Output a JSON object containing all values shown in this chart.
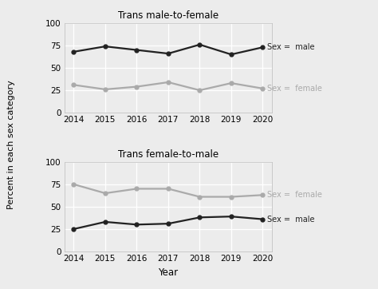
{
  "years": [
    2014,
    2015,
    2016,
    2017,
    2018,
    2019,
    2020
  ],
  "top_title": "Trans male-to-female",
  "bottom_title": "Trans female-to-male",
  "ylabel": "Percent in each sex category",
  "xlabel": "Year",
  "top_male": [
    68,
    74,
    70,
    66,
    76,
    65,
    73
  ],
  "top_female": [
    31,
    26,
    29,
    34,
    25,
    33,
    27
  ],
  "bot_female": [
    75,
    65,
    70,
    70,
    61,
    61,
    63
  ],
  "bot_male": [
    25,
    33,
    30,
    31,
    38,
    39,
    36
  ],
  "color_black": "#222222",
  "color_gray": "#aaaaaa",
  "label_male": "Sex =  male",
  "label_female": "Sex =  female",
  "ylim": [
    0,
    100
  ],
  "yticks": [
    0,
    25,
    50,
    75,
    100
  ],
  "background_color": "#ececec",
  "grid_color": "#ffffff",
  "marker": "o",
  "marker_size": 3.5,
  "linewidth": 1.6
}
